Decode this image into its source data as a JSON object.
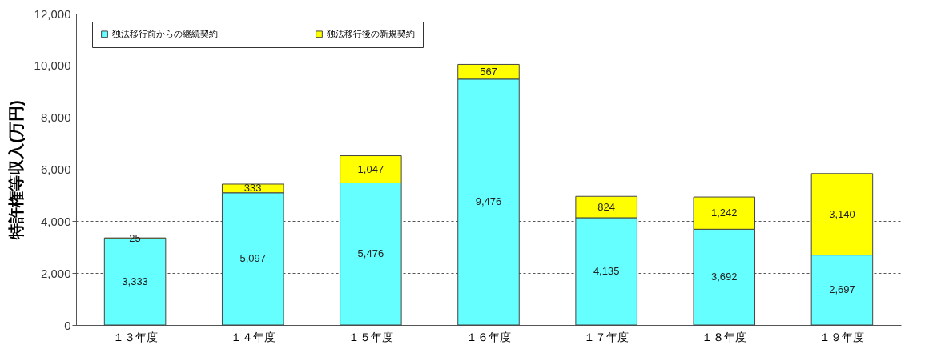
{
  "chart_data": {
    "type": "bar",
    "ylabel": "特許権等収入(万円)",
    "categories": [
      "１３年度",
      "１４年度",
      "１５年度",
      "１６年度",
      "１７年度",
      "１８年度",
      "１９年度"
    ],
    "series": [
      {
        "name": "独法移行前からの継続契約",
        "color": "#66ffff",
        "values": [
          3333,
          5097,
          5476,
          9476,
          4135,
          3692,
          2697
        ],
        "value_labels": [
          "3,333",
          "5,097",
          "5,476",
          "9,476",
          "4,135",
          "3,692",
          "2,697"
        ]
      },
      {
        "name": "独法移行後の新規契約",
        "color": "#ffff00",
        "values": [
          25,
          333,
          1047,
          567,
          824,
          1242,
          3140
        ],
        "value_labels": [
          "25",
          "333",
          "1,047",
          "567",
          "824",
          "1,242",
          "3,140"
        ]
      }
    ],
    "stacked": true,
    "ylim": [
      0,
      12000
    ],
    "yticks": [
      0,
      {
        "value": 2000,
        "label": "2,000"
      },
      {
        "value": 4000,
        "label": "4,000"
      },
      {
        "value": 6000,
        "label": "6,000"
      },
      {
        "value": 8000,
        "label": "8,000"
      },
      {
        "value": 10000,
        "label": "10,000"
      },
      {
        "value": 12000,
        "label": "12,000"
      }
    ],
    "grid": "y",
    "legend": "top left"
  }
}
